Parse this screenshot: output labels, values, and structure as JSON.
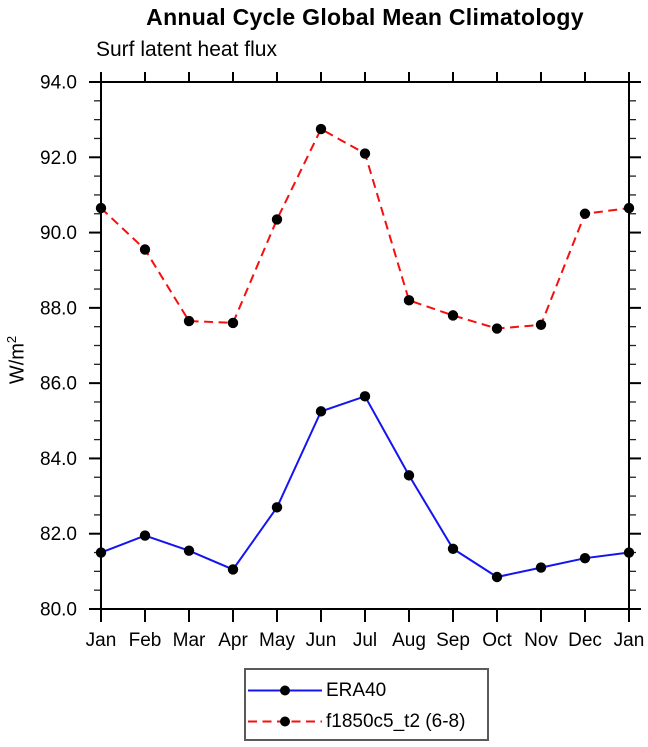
{
  "chart_data": {
    "type": "line",
    "title": "Annual Cycle Global Mean Climatology",
    "subtitle": "Surf latent heat flux",
    "ylabel": "W/m²",
    "ylabel_base": "W/m",
    "ylabel_exp": "2",
    "xlabel": "",
    "categories": [
      "Jan",
      "Feb",
      "Mar",
      "Apr",
      "May",
      "Jun",
      "Jul",
      "Aug",
      "Sep",
      "Oct",
      "Nov",
      "Dec",
      "Jan"
    ],
    "ylim": [
      80.0,
      94.0
    ],
    "ytick_major": 2.0,
    "ytick_minor": 0.5,
    "ytick_labels": [
      "80.0",
      "82.0",
      "84.0",
      "86.0",
      "88.0",
      "90.0",
      "92.0",
      "94.0"
    ],
    "grid": false,
    "legend_position": "bottom-center",
    "axis_color": "#000000",
    "series": [
      {
        "name": "ERA40",
        "color": "#1414f0",
        "line_style": "solid",
        "marker": "filled-circle",
        "marker_color": "#000000",
        "values": [
          81.5,
          81.95,
          81.55,
          81.05,
          82.7,
          85.25,
          85.65,
          83.55,
          81.6,
          80.85,
          81.1,
          81.35,
          81.5
        ]
      },
      {
        "name": "f1850c5_t2 (6-8)",
        "color": "#f50f0f",
        "line_style": "dashed",
        "marker": "filled-circle",
        "marker_color": "#000000",
        "values": [
          90.65,
          89.55,
          87.65,
          87.6,
          90.35,
          92.75,
          92.1,
          88.2,
          87.8,
          87.45,
          87.55,
          90.5,
          90.65
        ]
      }
    ]
  }
}
